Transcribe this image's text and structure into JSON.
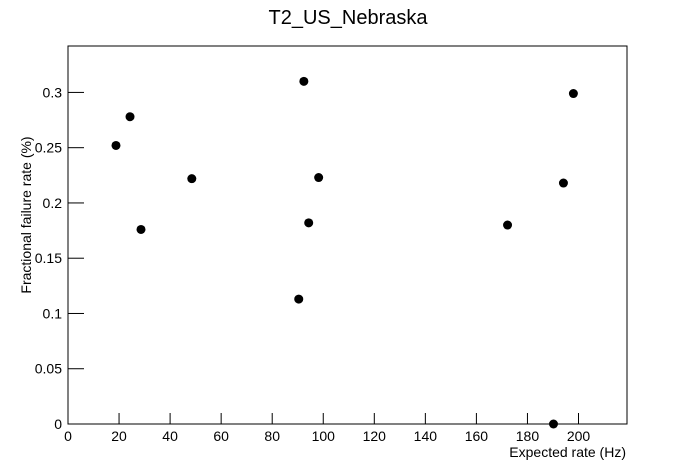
{
  "chart_data": {
    "type": "scatter",
    "title": "T2_US_Nebraska",
    "x_label": "Expected rate (Hz)",
    "y_label": "Fractional failure rate (%)",
    "x": [
      18.8,
      24.3,
      28.6,
      48.5,
      90.4,
      92.4,
      94.3,
      98.2,
      172.2,
      190.2,
      194.1,
      198.0
    ],
    "values": [
      0.252,
      0.278,
      0.176,
      0.222,
      0.113,
      0.31,
      0.182,
      0.223,
      0.18,
      0,
      0.218,
      0.299
    ],
    "color": "#000000",
    "xlim": [
      0,
      219
    ],
    "xticks": [
      0,
      20,
      40,
      60,
      80,
      100,
      120,
      140,
      160,
      180,
      200
    ],
    "ylim": [
      0,
      0.342
    ],
    "yticks": [
      0,
      0.05,
      0.1,
      0.15,
      0.2,
      0.25,
      0.3
    ]
  }
}
